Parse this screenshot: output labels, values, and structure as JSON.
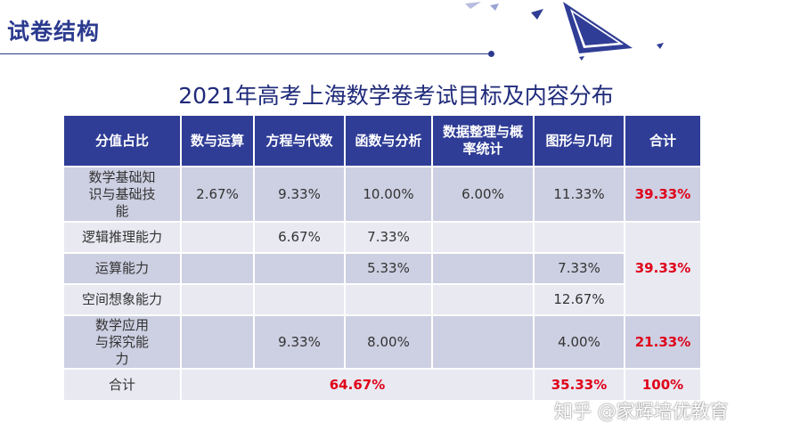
{
  "slide_title": "试卷结构",
  "table_title": "2021年高考上海数学卷考试目标及内容分布",
  "table": {
    "headers": [
      "分值占比",
      "数与运算",
      "方程与代数",
      "函数与分析",
      "数据整理与概率统计",
      "图形与几何",
      "合计"
    ],
    "rows": [
      {
        "label": "数学基础知识与基础技能",
        "cells": [
          "2.67%",
          "9.33%",
          "10.00%",
          "6.00%",
          "11.33%"
        ],
        "total": "39.33%"
      },
      {
        "label": "逻辑推理能力",
        "cells": [
          "",
          "6.67%",
          "7.33%",
          "",
          ""
        ]
      },
      {
        "label": "运算能力",
        "cells": [
          "",
          "",
          "5.33%",
          "",
          "7.33%"
        ]
      },
      {
        "label": "空间想象能力",
        "cells": [
          "",
          "",
          "",
          "",
          "12.67%"
        ]
      },
      {
        "label": "数学应用与探究能力",
        "cells": [
          "",
          "9.33%",
          "8.00%",
          "",
          "4.00%"
        ],
        "total": "21.33%"
      }
    ],
    "merged_total": "39.33%",
    "footer": {
      "label": "合计",
      "left_total": "64.67%",
      "right_total": "35.33%",
      "grand_total": "100%"
    }
  },
  "watermark": "知乎 @家辉培优教育",
  "colors": {
    "header_bg": "#2f3d96",
    "band_dark": "#cdcfe2",
    "band_light": "#e8e9f1",
    "accent_red": "#e0001a",
    "title_blue": "#2b3a8f"
  }
}
